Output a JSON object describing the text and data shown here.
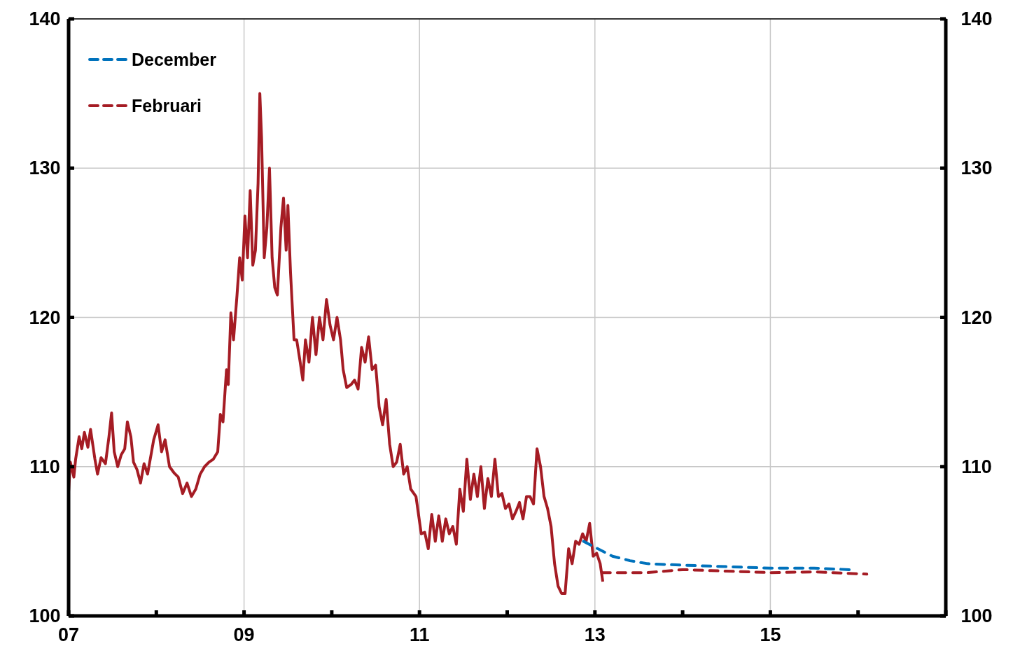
{
  "chart_data": {
    "type": "line",
    "xlim": [
      2007,
      2017
    ],
    "xticks": [
      {
        "value": 2007,
        "label": "07"
      },
      {
        "value": 2008,
        "label": null
      },
      {
        "value": 2009,
        "label": "09"
      },
      {
        "value": 2010,
        "label": null
      },
      {
        "value": 2011,
        "label": "11"
      },
      {
        "value": 2012,
        "label": null
      },
      {
        "value": 2013,
        "label": "13"
      },
      {
        "value": 2014,
        "label": null
      },
      {
        "value": 2015,
        "label": "15"
      },
      {
        "value": 2016,
        "label": null
      },
      {
        "value": 2017,
        "label": null
      }
    ],
    "ylim": [
      100,
      140
    ],
    "yticks": [
      100,
      110,
      120,
      130,
      140
    ],
    "y2lim": [
      100,
      140
    ],
    "y2ticks": [
      100,
      110,
      120,
      130,
      140
    ],
    "grid": true,
    "legend": "top left",
    "series": [
      {
        "color": "#a51c24",
        "line_style": "solid",
        "x": [
          2007.0,
          2007.02,
          2007.06,
          2007.08,
          2007.12,
          2007.15,
          2007.18,
          2007.22,
          2007.25,
          2007.3,
          2007.33,
          2007.37,
          2007.42,
          2007.46,
          2007.49,
          2007.52,
          2007.56,
          2007.6,
          2007.64,
          2007.67,
          2007.71,
          2007.74,
          2007.78,
          2007.82,
          2007.86,
          2007.9,
          2007.94,
          2007.97,
          2008.02,
          2008.06,
          2008.1,
          2008.15,
          2008.2,
          2008.25,
          2008.3,
          2008.35,
          2008.4,
          2008.45,
          2008.5,
          2008.55,
          2008.6,
          2008.65,
          2008.7,
          2008.73,
          2008.76,
          2008.8,
          2008.82,
          2008.85,
          2008.88,
          2008.92,
          2008.95,
          2008.98,
          2009.01,
          2009.04,
          2009.07,
          2009.1,
          2009.13,
          2009.16,
          2009.18,
          2009.2,
          2009.23,
          2009.26,
          2009.29,
          2009.32,
          2009.35,
          2009.38,
          2009.42,
          2009.45,
          2009.48,
          2009.5,
          2009.53,
          2009.57,
          2009.6,
          2009.64,
          2009.67,
          2009.7,
          2009.74,
          2009.78,
          2009.82,
          2009.86,
          2009.9,
          2009.94,
          2009.98,
          2010.02,
          2010.06,
          2010.1,
          2010.13,
          2010.17,
          2010.22,
          2010.26,
          2010.3,
          2010.34,
          2010.38,
          2010.42,
          2010.46,
          2010.5,
          2010.54,
          2010.58,
          2010.62,
          2010.66,
          2010.7,
          2010.74,
          2010.78,
          2010.82,
          2010.86,
          2010.9,
          2010.96,
          2011.02,
          2011.06,
          2011.1,
          2011.14,
          2011.18,
          2011.22,
          2011.26,
          2011.3,
          2011.34,
          2011.38,
          2011.42,
          2011.46,
          2011.5,
          2011.54,
          2011.58,
          2011.62,
          2011.66,
          2011.7,
          2011.74,
          2011.78,
          2011.82,
          2011.86,
          2011.9,
          2011.94,
          2011.98,
          2012.02,
          2012.06,
          2012.1,
          2012.14,
          2012.18,
          2012.22,
          2012.26,
          2012.3,
          2012.34,
          2012.38,
          2012.42,
          2012.46,
          2012.5,
          2012.54,
          2012.58,
          2012.62,
          2012.66,
          2012.7,
          2012.74,
          2012.78,
          2012.82,
          2012.86,
          2012.9,
          2012.94,
          2012.98,
          2013.02,
          2013.06,
          2013.09
        ],
        "values": [
          108.3,
          110.3,
          109.3,
          110.5,
          112.0,
          111.2,
          112.3,
          111.3,
          112.5,
          110.5,
          109.5,
          110.6,
          110.2,
          112.0,
          113.6,
          111.0,
          110.0,
          110.8,
          111.2,
          113.0,
          112.0,
          110.3,
          109.8,
          108.9,
          110.2,
          109.5,
          110.8,
          111.8,
          112.8,
          111.0,
          111.8,
          110.0,
          109.6,
          109.3,
          108.2,
          108.9,
          108.0,
          108.5,
          109.5,
          110.0,
          110.3,
          110.5,
          111.0,
          113.5,
          113.0,
          116.5,
          115.5,
          120.3,
          118.5,
          121.5,
          124.0,
          122.5,
          126.8,
          124.0,
          128.5,
          123.5,
          124.5,
          129.0,
          135.0,
          132.0,
          124.0,
          126.0,
          130.0,
          124.0,
          122.0,
          121.5,
          126.0,
          128.0,
          124.5,
          127.5,
          123.0,
          118.5,
          118.5,
          117.0,
          115.8,
          118.5,
          117.0,
          120.0,
          117.5,
          120.0,
          118.5,
          121.2,
          119.5,
          118.5,
          120.0,
          118.5,
          116.5,
          115.3,
          115.5,
          115.8,
          115.2,
          118.0,
          117.0,
          118.7,
          116.5,
          116.8,
          114.0,
          112.8,
          114.5,
          111.5,
          110.0,
          110.3,
          111.5,
          109.5,
          110.0,
          108.5,
          108.0,
          105.5,
          105.6,
          104.5,
          106.8,
          105.0,
          106.7,
          105.0,
          106.5,
          105.5,
          106.0,
          104.8,
          108.5,
          107.0,
          110.5,
          107.8,
          109.5,
          108.0,
          110.0,
          107.2,
          109.2,
          108.0,
          110.5,
          108.0,
          108.2,
          107.2,
          107.5,
          106.5,
          107.0,
          107.6,
          106.5,
          108.0,
          108.0,
          107.5,
          111.2,
          110.0,
          108.0,
          107.2,
          106.0,
          103.5,
          102.0,
          101.5,
          101.5,
          104.5,
          103.5,
          105.0,
          104.8,
          105.5,
          105.0,
          106.2,
          104.0,
          104.2,
          103.5,
          102.3
        ]
      },
      {
        "name": "December",
        "color": "#0072bc",
        "line_style": "dashed",
        "x": [
          2012.87,
          2013.0,
          2013.2,
          2013.4,
          2013.6,
          2014.0,
          2014.5,
          2015.0,
          2015.5,
          2015.9
        ],
        "values": [
          105.0,
          104.6,
          104.0,
          103.7,
          103.5,
          103.4,
          103.3,
          103.2,
          103.2,
          103.1
        ]
      },
      {
        "name": "Februari",
        "color": "#a51c24",
        "line_style": "dashed",
        "x": [
          2013.08,
          2013.6,
          2014.0,
          2014.5,
          2015.0,
          2015.5,
          2016.1
        ],
        "values": [
          102.9,
          102.9,
          103.1,
          103.0,
          102.9,
          102.95,
          102.8
        ]
      }
    ]
  }
}
